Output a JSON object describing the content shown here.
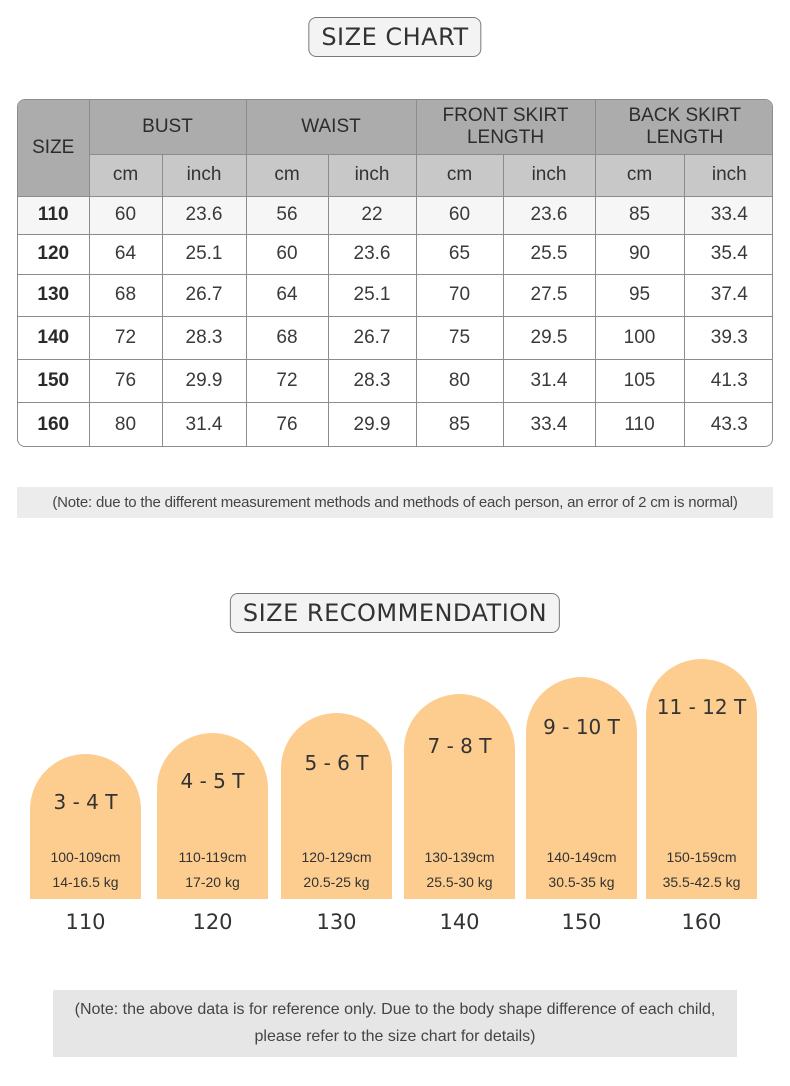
{
  "size_chart": {
    "title": "SIZE CHART",
    "header": {
      "size": "SIZE",
      "groups": [
        "BUST",
        "WAIST",
        "FRONT SKIRT LENGTH",
        "BACK SKIRT LENGTH"
      ],
      "units": [
        "cm",
        "inch",
        "cm",
        "inch",
        "cm",
        "inch",
        "cm",
        "inch"
      ]
    },
    "rows": [
      [
        "110",
        "60",
        "23.6",
        "56",
        "22",
        "60",
        "23.6",
        "85",
        "33.4"
      ],
      [
        "120",
        "64",
        "25.1",
        "60",
        "23.6",
        "65",
        "25.5",
        "90",
        "35.4"
      ],
      [
        "130",
        "68",
        "26.7",
        "64",
        "25.1",
        "70",
        "27.5",
        "95",
        "37.4"
      ],
      [
        "140",
        "72",
        "28.3",
        "68",
        "26.7",
        "75",
        "29.5",
        "100",
        "39.3"
      ],
      [
        "150",
        "76",
        "29.9",
        "72",
        "28.3",
        "80",
        "31.4",
        "105",
        "41.3"
      ],
      [
        "160",
        "80",
        "31.4",
        "76",
        "29.9",
        "85",
        "33.4",
        "110",
        "43.3"
      ]
    ],
    "note": "(Note: due to the different measurement methods and methods of each person, an error of 2 cm is normal)"
  },
  "recommendation": {
    "title": "SIZE RECOMMENDATION",
    "items": [
      {
        "age": "3 - 4 T",
        "height": "100-109cm",
        "weight": "14-16.5 kg",
        "size": "110"
      },
      {
        "age": "4 - 5 T",
        "height": "110-119cm",
        "weight": "17-20 kg",
        "size": "120"
      },
      {
        "age": "5 - 6 T",
        "height": "120-129cm",
        "weight": "20.5-25 kg",
        "size": "130"
      },
      {
        "age": "7 - 8 T",
        "height": "130-139cm",
        "weight": "25.5-30 kg",
        "size": "140"
      },
      {
        "age": "9 - 10 T",
        "height": "140-149cm",
        "weight": "30.5-35 kg",
        "size": "150"
      },
      {
        "age": "11 - 12 T",
        "height": "150-159cm",
        "weight": "35.5-42.5 kg",
        "size": "160"
      }
    ],
    "note_lines": [
      "(Note: the above data is for reference only. Due to the body shape difference of each child,",
      "please refer to the size chart for details)"
    ]
  },
  "colors": {
    "arch": "#fdcd8f",
    "header_dark": "#acacac",
    "header_light": "#c8c8c8"
  }
}
